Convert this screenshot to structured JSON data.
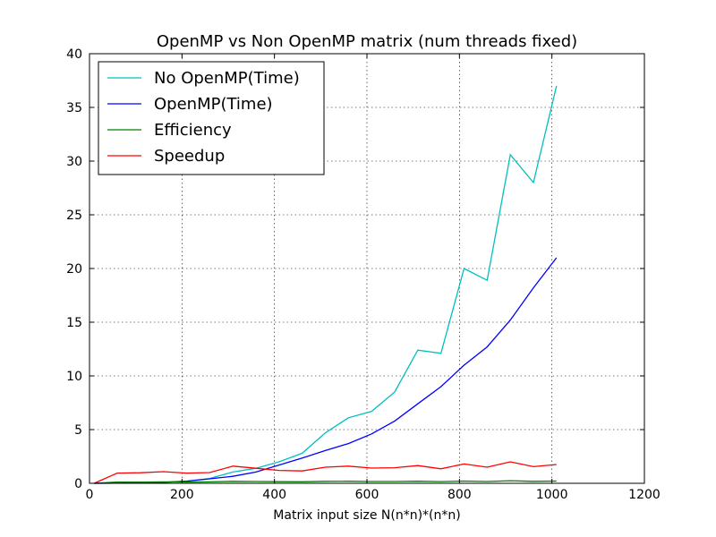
{
  "chart_data": {
    "type": "line",
    "title": "OpenMP vs Non OpenMP matrix (num threads fixed)",
    "xlabel": "Matrix input size N(n*n)*(n*n)",
    "ylabel": "",
    "xlim": [
      0,
      1200
    ],
    "ylim": [
      0,
      40
    ],
    "xticks": [
      "0",
      "200",
      "400",
      "600",
      "800",
      "1000",
      "1200"
    ],
    "yticks": [
      "0",
      "5",
      "10",
      "15",
      "20",
      "25",
      "30",
      "35",
      "40"
    ],
    "grid": true,
    "legend_position": "top-left",
    "x": [
      10,
      60,
      110,
      160,
      210,
      260,
      310,
      360,
      410,
      460,
      510,
      560,
      610,
      660,
      710,
      760,
      810,
      860,
      910,
      960,
      1010
    ],
    "series": [
      {
        "name": "No OpenMP(Time)",
        "color": "#00bfbf",
        "values": [
          0.0,
          0.02,
          0.05,
          0.1,
          0.2,
          0.45,
          1.05,
          1.4,
          2.0,
          2.8,
          4.7,
          6.1,
          6.7,
          8.5,
          12.4,
          12.1,
          20.0,
          18.9,
          30.6,
          28.0,
          37.0
        ]
      },
      {
        "name": "OpenMP(Time)",
        "color": "#0000ff",
        "values": [
          0.0,
          0.02,
          0.05,
          0.09,
          0.2,
          0.42,
          0.65,
          1.05,
          1.7,
          2.35,
          3.05,
          3.7,
          4.6,
          5.8,
          7.4,
          9.0,
          11.0,
          12.7,
          15.2,
          18.2,
          21.0
        ]
      },
      {
        "name": "Efficiency",
        "color": "#008000",
        "values": [
          0.0,
          0.12,
          0.12,
          0.13,
          0.12,
          0.13,
          0.18,
          0.17,
          0.15,
          0.14,
          0.18,
          0.19,
          0.17,
          0.17,
          0.19,
          0.16,
          0.21,
          0.17,
          0.24,
          0.18,
          0.21
        ]
      },
      {
        "name": "Speedup",
        "color": "#ff0000",
        "values": [
          0.0,
          0.95,
          0.98,
          1.08,
          0.95,
          1.0,
          1.6,
          1.4,
          1.2,
          1.15,
          1.5,
          1.6,
          1.42,
          1.45,
          1.65,
          1.35,
          1.8,
          1.5,
          2.0,
          1.55,
          1.75
        ]
      }
    ]
  }
}
